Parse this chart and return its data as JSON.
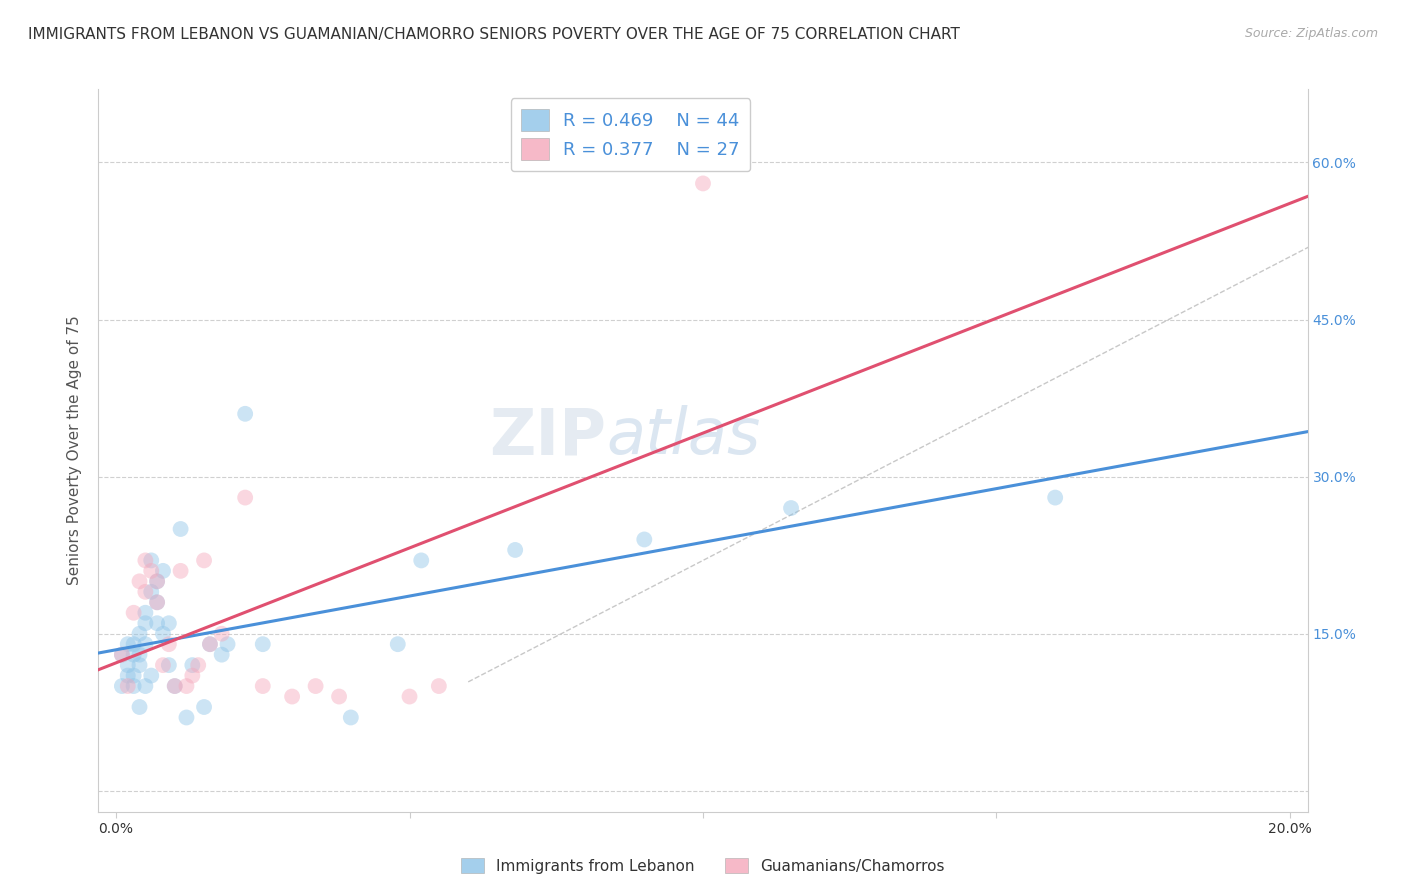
{
  "title": "IMMIGRANTS FROM LEBANON VS GUAMANIAN/CHAMORRO SENIORS POVERTY OVER THE AGE OF 75 CORRELATION CHART",
  "source": "Source: ZipAtlas.com",
  "ylabel": "Seniors Poverty Over the Age of 75",
  "xlabel": "",
  "xlim": [
    -0.003,
    0.203
  ],
  "ylim": [
    -0.02,
    0.67
  ],
  "yticks": [
    0.0,
    0.15,
    0.3,
    0.45,
    0.6
  ],
  "ytick_labels": [
    "",
    "15.0%",
    "30.0%",
    "45.0%",
    "60.0%"
  ],
  "xticks": [
    0.0,
    0.05,
    0.1,
    0.15,
    0.2
  ],
  "xtick_labels": [
    "0.0%",
    "",
    "",
    "",
    "20.0%"
  ],
  "watermark": "ZIPatlas",
  "legend_r1": "0.469",
  "legend_n1": "44",
  "legend_r2": "0.377",
  "legend_n2": "27",
  "color_blue": "#8ec4e8",
  "color_pink": "#f4a8bb",
  "color_blue_line": "#4a90d9",
  "color_pink_line": "#e05070",
  "color_dashed": "#c8c8c8",
  "label1": "Immigrants from Lebanon",
  "label2": "Guamanians/Chamorros",
  "blue_x": [
    0.001,
    0.001,
    0.002,
    0.002,
    0.002,
    0.003,
    0.003,
    0.003,
    0.003,
    0.004,
    0.004,
    0.004,
    0.004,
    0.005,
    0.005,
    0.005,
    0.005,
    0.006,
    0.006,
    0.006,
    0.007,
    0.007,
    0.007,
    0.008,
    0.008,
    0.009,
    0.009,
    0.01,
    0.011,
    0.012,
    0.013,
    0.015,
    0.016,
    0.018,
    0.019,
    0.022,
    0.025,
    0.04,
    0.048,
    0.052,
    0.068,
    0.09,
    0.115,
    0.16
  ],
  "blue_y": [
    0.1,
    0.13,
    0.11,
    0.12,
    0.14,
    0.1,
    0.11,
    0.13,
    0.14,
    0.12,
    0.13,
    0.15,
    0.08,
    0.14,
    0.16,
    0.17,
    0.1,
    0.11,
    0.19,
    0.22,
    0.16,
    0.18,
    0.2,
    0.15,
    0.21,
    0.12,
    0.16,
    0.1,
    0.25,
    0.07,
    0.12,
    0.08,
    0.14,
    0.13,
    0.14,
    0.36,
    0.14,
    0.07,
    0.14,
    0.22,
    0.23,
    0.24,
    0.27,
    0.28
  ],
  "pink_x": [
    0.001,
    0.002,
    0.003,
    0.004,
    0.005,
    0.005,
    0.006,
    0.007,
    0.007,
    0.008,
    0.009,
    0.01,
    0.011,
    0.012,
    0.013,
    0.014,
    0.015,
    0.016,
    0.018,
    0.022,
    0.025,
    0.03,
    0.034,
    0.038,
    0.05,
    0.055,
    0.1
  ],
  "pink_y": [
    0.13,
    0.1,
    0.17,
    0.2,
    0.19,
    0.22,
    0.21,
    0.2,
    0.18,
    0.12,
    0.14,
    0.1,
    0.21,
    0.1,
    0.11,
    0.12,
    0.22,
    0.14,
    0.15,
    0.28,
    0.1,
    0.09,
    0.1,
    0.09,
    0.09,
    0.1,
    0.58
  ],
  "title_fontsize": 11,
  "axis_label_fontsize": 11,
  "tick_fontsize": 10,
  "legend_fontsize": 13,
  "watermark_fontsize": 36,
  "marker_size": 130,
  "marker_alpha": 0.45,
  "line_width": 2.2
}
